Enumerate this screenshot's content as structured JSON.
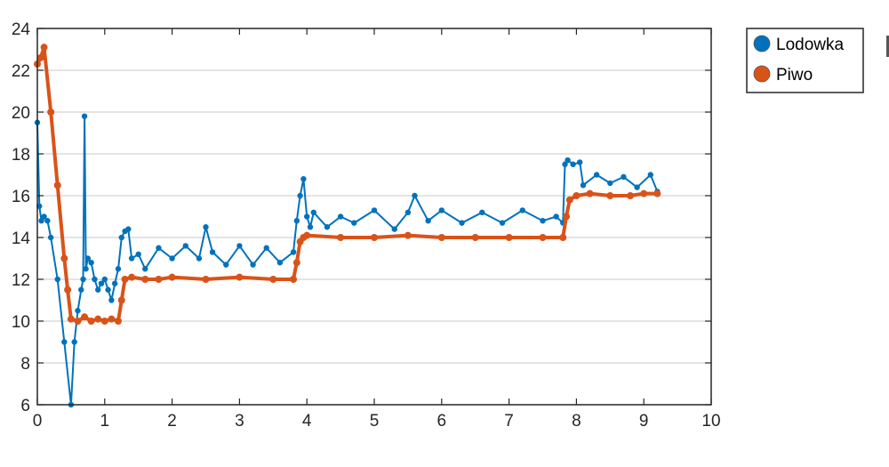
{
  "chart_data": {
    "type": "scatter",
    "title": "",
    "xlabel": "",
    "ylabel": "",
    "xlim": [
      0,
      10
    ],
    "ylim": [
      6,
      24
    ],
    "xticks": [
      "0",
      "1",
      "2",
      "3",
      "4",
      "5",
      "6",
      "7",
      "8",
      "9",
      "10"
    ],
    "yticks": [
      "6",
      "8",
      "10",
      "12",
      "14",
      "16",
      "18",
      "20",
      "22",
      "24"
    ],
    "grid": "horizontal",
    "legend_position": "outside-top-right",
    "connected": true,
    "series": [
      {
        "name": "Lodowka",
        "color": "#0072BD",
        "x": [
          0.0,
          0.03,
          0.06,
          0.1,
          0.15,
          0.2,
          0.3,
          0.4,
          0.5,
          0.55,
          0.6,
          0.65,
          0.68,
          0.7,
          0.72,
          0.75,
          0.8,
          0.85,
          0.9,
          0.95,
          1.0,
          1.05,
          1.1,
          1.15,
          1.2,
          1.25,
          1.3,
          1.35,
          1.4,
          1.5,
          1.6,
          1.8,
          2.0,
          2.2,
          2.4,
          2.5,
          2.6,
          2.8,
          3.0,
          3.2,
          3.4,
          3.6,
          3.8,
          3.85,
          3.9,
          3.95,
          4.0,
          4.05,
          4.1,
          4.3,
          4.5,
          4.7,
          5.0,
          5.3,
          5.5,
          5.6,
          5.8,
          6.0,
          6.3,
          6.6,
          6.9,
          7.2,
          7.5,
          7.7,
          7.8,
          7.83,
          7.87,
          7.95,
          8.05,
          8.1,
          8.3,
          8.5,
          8.7,
          8.9,
          9.1,
          9.2
        ],
        "y": [
          19.5,
          15.5,
          14.8,
          15.0,
          14.8,
          14.0,
          12.0,
          9.0,
          6.0,
          9.0,
          10.5,
          11.5,
          12.0,
          19.8,
          12.5,
          13.0,
          12.8,
          12.0,
          11.5,
          11.8,
          12.0,
          11.5,
          11.0,
          11.8,
          12.5,
          14.0,
          14.3,
          14.4,
          13.0,
          13.2,
          12.5,
          13.5,
          13.0,
          13.6,
          13.0,
          14.5,
          13.3,
          12.7,
          13.6,
          12.7,
          13.5,
          12.8,
          13.3,
          14.8,
          16.0,
          16.8,
          15.0,
          14.5,
          15.2,
          14.5,
          15.0,
          14.7,
          15.3,
          14.4,
          15.2,
          16.0,
          14.8,
          15.3,
          14.7,
          15.2,
          14.7,
          15.3,
          14.8,
          15.0,
          14.7,
          17.5,
          17.7,
          17.5,
          17.6,
          16.5,
          17.0,
          16.6,
          16.9,
          16.4,
          17.0,
          16.2
        ]
      },
      {
        "name": "Piwo",
        "color": "#D95319",
        "x": [
          0.0,
          0.05,
          0.1,
          0.2,
          0.3,
          0.4,
          0.45,
          0.5,
          0.6,
          0.7,
          0.8,
          0.9,
          1.0,
          1.1,
          1.2,
          1.25,
          1.3,
          1.4,
          1.6,
          1.8,
          2.0,
          2.5,
          3.0,
          3.5,
          3.8,
          3.85,
          3.9,
          3.95,
          4.0,
          4.5,
          5.0,
          5.5,
          6.0,
          6.5,
          7.0,
          7.5,
          7.8,
          7.85,
          7.9,
          8.0,
          8.2,
          8.5,
          8.8,
          9.0,
          9.2
        ],
        "y": [
          22.3,
          22.6,
          23.1,
          20.0,
          16.5,
          13.0,
          11.5,
          10.1,
          10.0,
          10.2,
          10.0,
          10.1,
          10.0,
          10.1,
          10.0,
          11.0,
          12.0,
          12.1,
          12.0,
          12.0,
          12.1,
          12.0,
          12.1,
          12.0,
          12.0,
          12.8,
          13.8,
          14.0,
          14.1,
          14.0,
          14.0,
          14.1,
          14.0,
          14.0,
          14.0,
          14.0,
          14.0,
          15.0,
          15.8,
          16.0,
          16.1,
          16.0,
          16.0,
          16.1,
          16.1
        ]
      }
    ]
  }
}
